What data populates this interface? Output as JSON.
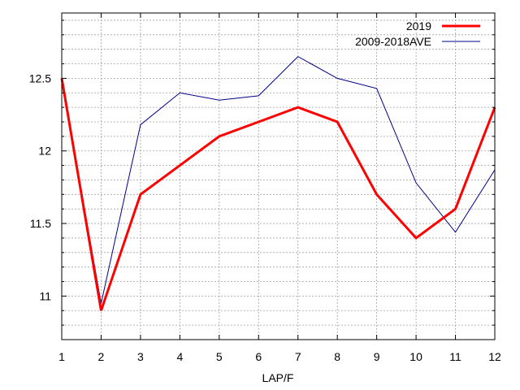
{
  "chart_data": {
    "type": "line",
    "title": "",
    "xlabel": "LAP/F",
    "ylabel": "",
    "x": [
      1,
      2,
      3,
      4,
      5,
      6,
      7,
      8,
      9,
      10,
      11,
      12
    ],
    "xlim": [
      1,
      12
    ],
    "ylim": [
      12.95,
      10.7
    ],
    "y_inverted": true,
    "yticks": [
      11,
      11.5,
      12,
      12.5
    ],
    "ytick_labels": [
      "11",
      "11.5",
      "12",
      "12.5"
    ],
    "xtick_labels": [
      "1",
      "2",
      "3",
      "4",
      "5",
      "6",
      "7",
      "8",
      "9",
      "10",
      "11",
      "12"
    ],
    "grid": true,
    "legend_position": "top-right",
    "series": [
      {
        "name": "2019",
        "color": "#ff0000",
        "values": [
          12.5,
          10.9,
          11.7,
          11.9,
          12.1,
          12.2,
          12.3,
          12.2,
          11.7,
          11.4,
          11.6,
          12.3
        ]
      },
      {
        "name": "2009-2018AVE",
        "color": "#00008b",
        "values": [
          12.5,
          10.95,
          12.18,
          12.4,
          12.35,
          12.38,
          12.65,
          12.5,
          12.43,
          11.78,
          11.44,
          11.87
        ]
      }
    ]
  }
}
